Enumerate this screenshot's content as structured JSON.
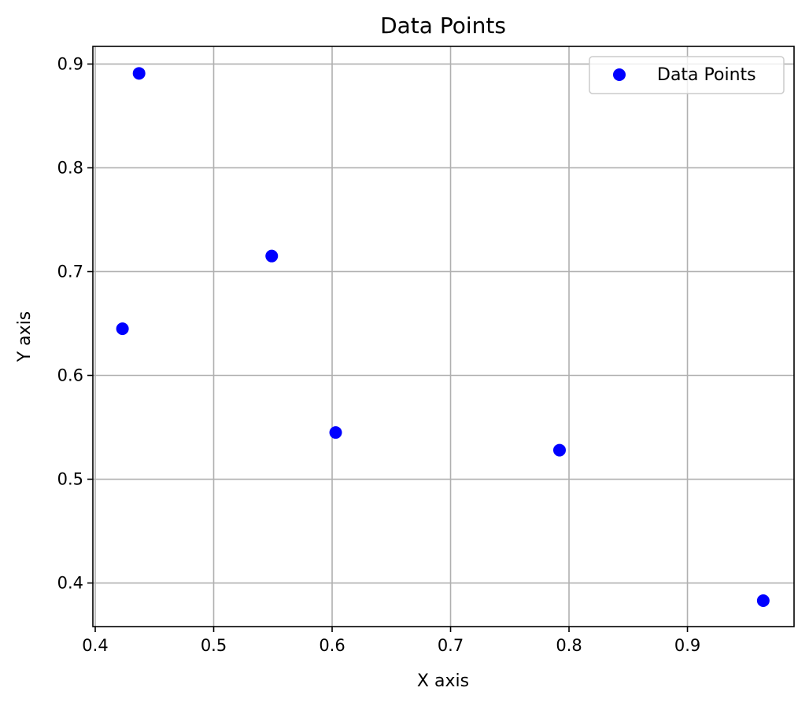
{
  "chart_data": {
    "type": "scatter",
    "title": "Data Points",
    "xlabel": "X axis",
    "ylabel": "Y axis",
    "xlim": [
      0.398,
      0.99
    ],
    "ylim": [
      0.358,
      0.917
    ],
    "xticks": [
      0.4,
      0.5,
      0.6,
      0.7,
      0.8,
      0.9
    ],
    "xtick_labels": [
      "0.4",
      "0.5",
      "0.6",
      "0.7",
      "0.8",
      "0.9"
    ],
    "yticks": [
      0.4,
      0.5,
      0.6,
      0.7,
      0.8,
      0.9
    ],
    "ytick_labels": [
      "0.4",
      "0.5",
      "0.6",
      "0.7",
      "0.8",
      "0.9"
    ],
    "grid": true,
    "legend_position": "top-right",
    "series": [
      {
        "name": "Data Points",
        "color": "#0000ff",
        "points": [
          {
            "x": 0.437,
            "y": 0.891
          },
          {
            "x": 0.549,
            "y": 0.715
          },
          {
            "x": 0.423,
            "y": 0.645
          },
          {
            "x": 0.603,
            "y": 0.545
          },
          {
            "x": 0.792,
            "y": 0.528
          },
          {
            "x": 0.964,
            "y": 0.383
          }
        ]
      }
    ]
  }
}
